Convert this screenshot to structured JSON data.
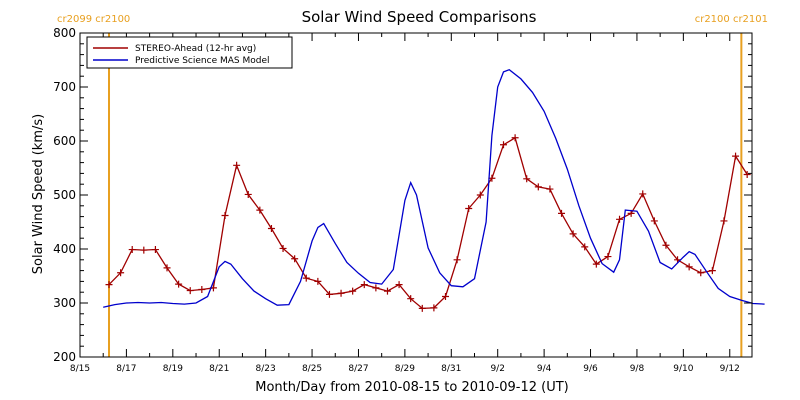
{
  "chart_data": {
    "type": "line",
    "title": "Solar Wind Speed Comparisons",
    "xlabel": "Month/Day from 2010-08-15 to 2010-09-12 (UT)",
    "ylabel": "Solar Wind Speed (km/s)",
    "x_unit": "date (UT)",
    "xlim": [
      "2010-08-15",
      "2010-09-12 23:00"
    ],
    "ylim": [
      200,
      800
    ],
    "yticks": [
      200,
      300,
      400,
      500,
      600,
      700,
      800
    ],
    "xticks": [
      {
        "date": "2010-08-15",
        "label": "8/15"
      },
      {
        "date": "2010-08-17",
        "label": "8/17"
      },
      {
        "date": "2010-08-19",
        "label": "8/19"
      },
      {
        "date": "2010-08-21",
        "label": "8/21"
      },
      {
        "date": "2010-08-23",
        "label": "8/23"
      },
      {
        "date": "2010-08-25",
        "label": "8/25"
      },
      {
        "date": "2010-08-27",
        "label": "8/27"
      },
      {
        "date": "2010-08-29",
        "label": "8/29"
      },
      {
        "date": "2010-08-31",
        "label": "8/31"
      },
      {
        "date": "2010-09-02",
        "label": "9/2"
      },
      {
        "date": "2010-09-04",
        "label": "9/4"
      },
      {
        "date": "2010-09-06",
        "label": "9/6"
      },
      {
        "date": "2010-09-08",
        "label": "9/8"
      },
      {
        "date": "2010-09-10",
        "label": "9/10"
      },
      {
        "date": "2010-09-12",
        "label": "9/12"
      }
    ],
    "grid": false,
    "legend_position": "top-left",
    "series": [
      {
        "name": "STEREO-Ahead (12-hr avg)",
        "color": "#a00000",
        "marker": "plus",
        "points": [
          [
            "2010-08-16 06:00",
            334
          ],
          [
            "2010-08-16 18:00",
            356
          ],
          [
            "2010-08-17 06:00",
            399
          ],
          [
            "2010-08-17 18:00",
            398
          ],
          [
            "2010-08-18 06:00",
            399
          ],
          [
            "2010-08-18 18:00",
            365
          ],
          [
            "2010-08-19 06:00",
            335
          ],
          [
            "2010-08-19 18:00",
            323
          ],
          [
            "2010-08-20 06:00",
            325
          ],
          [
            "2010-08-20 18:00",
            328
          ],
          [
            "2010-08-21 06:00",
            462
          ],
          [
            "2010-08-21 18:00",
            555
          ],
          [
            "2010-08-22 06:00",
            501
          ],
          [
            "2010-08-22 18:00",
            472
          ],
          [
            "2010-08-23 06:00",
            438
          ],
          [
            "2010-08-23 18:00",
            401
          ],
          [
            "2010-08-24 06:00",
            382
          ],
          [
            "2010-08-24 18:00",
            346
          ],
          [
            "2010-08-25 06:00",
            340
          ],
          [
            "2010-08-25 18:00",
            316
          ],
          [
            "2010-08-26 06:00",
            318
          ],
          [
            "2010-08-26 18:00",
            322
          ],
          [
            "2010-08-27 06:00",
            334
          ],
          [
            "2010-08-27 18:00",
            328
          ],
          [
            "2010-08-28 06:00",
            322
          ],
          [
            "2010-08-28 18:00",
            334
          ],
          [
            "2010-08-29 06:00",
            308
          ],
          [
            "2010-08-29 18:00",
            290
          ],
          [
            "2010-08-30 06:00",
            291
          ],
          [
            "2010-08-30 18:00",
            312
          ],
          [
            "2010-08-31 06:00",
            380
          ],
          [
            "2010-08-31 18:00",
            475
          ],
          [
            "2010-09-01 06:00",
            500
          ],
          [
            "2010-09-01 18:00",
            531
          ],
          [
            "2010-09-02 06:00",
            593
          ],
          [
            "2010-09-02 18:00",
            606
          ],
          [
            "2010-09-03 06:00",
            530
          ],
          [
            "2010-09-03 18:00",
            515
          ],
          [
            "2010-09-04 06:00",
            511
          ],
          [
            "2010-09-04 18:00",
            466
          ],
          [
            "2010-09-05 06:00",
            428
          ],
          [
            "2010-09-05 18:00",
            404
          ],
          [
            "2010-09-06 06:00",
            372
          ],
          [
            "2010-09-06 18:00",
            386
          ],
          [
            "2010-09-07 06:00",
            455
          ],
          [
            "2010-09-07 18:00",
            466
          ],
          [
            "2010-09-08 06:00",
            502
          ],
          [
            "2010-09-08 18:00",
            452
          ],
          [
            "2010-09-09 06:00",
            407
          ],
          [
            "2010-09-09 18:00",
            380
          ],
          [
            "2010-09-10 06:00",
            367
          ],
          [
            "2010-09-10 18:00",
            356
          ],
          [
            "2010-09-11 06:00",
            360
          ],
          [
            "2010-09-11 18:00",
            452
          ],
          [
            "2010-09-12 06:00",
            572
          ],
          [
            "2010-09-12 18:00",
            538
          ]
        ]
      },
      {
        "name": "Predictive Science MAS Model",
        "color": "#0000cc",
        "marker": "none",
        "points": [
          [
            "2010-08-16 00:00",
            292
          ],
          [
            "2010-08-16 12:00",
            297
          ],
          [
            "2010-08-17 00:00",
            300
          ],
          [
            "2010-08-17 12:00",
            301
          ],
          [
            "2010-08-18 00:00",
            300
          ],
          [
            "2010-08-18 12:00",
            301
          ],
          [
            "2010-08-19 00:00",
            299
          ],
          [
            "2010-08-19 12:00",
            298
          ],
          [
            "2010-08-20 00:00",
            300
          ],
          [
            "2010-08-20 12:00",
            312
          ],
          [
            "2010-08-21 00:00",
            367
          ],
          [
            "2010-08-21 06:00",
            377
          ],
          [
            "2010-08-21 12:00",
            372
          ],
          [
            "2010-08-22 00:00",
            345
          ],
          [
            "2010-08-22 12:00",
            322
          ],
          [
            "2010-08-23 00:00",
            308
          ],
          [
            "2010-08-23 12:00",
            296
          ],
          [
            "2010-08-24 00:00",
            297
          ],
          [
            "2010-08-24 12:00",
            340
          ],
          [
            "2010-08-25 00:00",
            415
          ],
          [
            "2010-08-25 06:00",
            440
          ],
          [
            "2010-08-25 12:00",
            447
          ],
          [
            "2010-08-26 00:00",
            410
          ],
          [
            "2010-08-26 12:00",
            375
          ],
          [
            "2010-08-27 00:00",
            355
          ],
          [
            "2010-08-27 12:00",
            338
          ],
          [
            "2010-08-28 00:00",
            335
          ],
          [
            "2010-08-28 12:00",
            362
          ],
          [
            "2010-08-29 00:00",
            490
          ],
          [
            "2010-08-29 06:00",
            523
          ],
          [
            "2010-08-29 12:00",
            500
          ],
          [
            "2010-08-30 00:00",
            402
          ],
          [
            "2010-08-30 12:00",
            356
          ],
          [
            "2010-08-31 00:00",
            332
          ],
          [
            "2010-08-31 12:00",
            330
          ],
          [
            "2010-09-01 00:00",
            345
          ],
          [
            "2010-09-01 12:00",
            450
          ],
          [
            "2010-09-01 18:00",
            610
          ],
          [
            "2010-09-02 00:00",
            700
          ],
          [
            "2010-09-02 06:00",
            728
          ],
          [
            "2010-09-02 12:00",
            732
          ],
          [
            "2010-09-03 00:00",
            715
          ],
          [
            "2010-09-03 12:00",
            690
          ],
          [
            "2010-09-04 00:00",
            655
          ],
          [
            "2010-09-04 12:00",
            605
          ],
          [
            "2010-09-05 00:00",
            548
          ],
          [
            "2010-09-05 12:00",
            480
          ],
          [
            "2010-09-06 00:00",
            420
          ],
          [
            "2010-09-06 12:00",
            373
          ],
          [
            "2010-09-07 00:00",
            357
          ],
          [
            "2010-09-07 06:00",
            380
          ],
          [
            "2010-09-07 12:00",
            472
          ],
          [
            "2010-09-08 00:00",
            470
          ],
          [
            "2010-09-08 12:00",
            433
          ],
          [
            "2010-09-09 00:00",
            375
          ],
          [
            "2010-09-09 12:00",
            363
          ],
          [
            "2010-09-10 00:00",
            385
          ],
          [
            "2010-09-10 06:00",
            395
          ],
          [
            "2010-09-10 12:00",
            390
          ],
          [
            "2010-09-11 00:00",
            358
          ],
          [
            "2010-09-11 12:00",
            327
          ],
          [
            "2010-09-12 00:00",
            312
          ],
          [
            "2010-09-12 12:00",
            305
          ],
          [
            "2010-09-13 00:00",
            299
          ],
          [
            "2010-09-13 12:00",
            298
          ]
        ]
      }
    ],
    "reference_lines": [
      {
        "date": "2010-08-16 06:00",
        "color": "#e8a020",
        "label": "cr2099 cr2100"
      },
      {
        "date": "2010-09-12 12:00",
        "color": "#e8a020",
        "label": "cr2100 cr2101"
      }
    ]
  }
}
